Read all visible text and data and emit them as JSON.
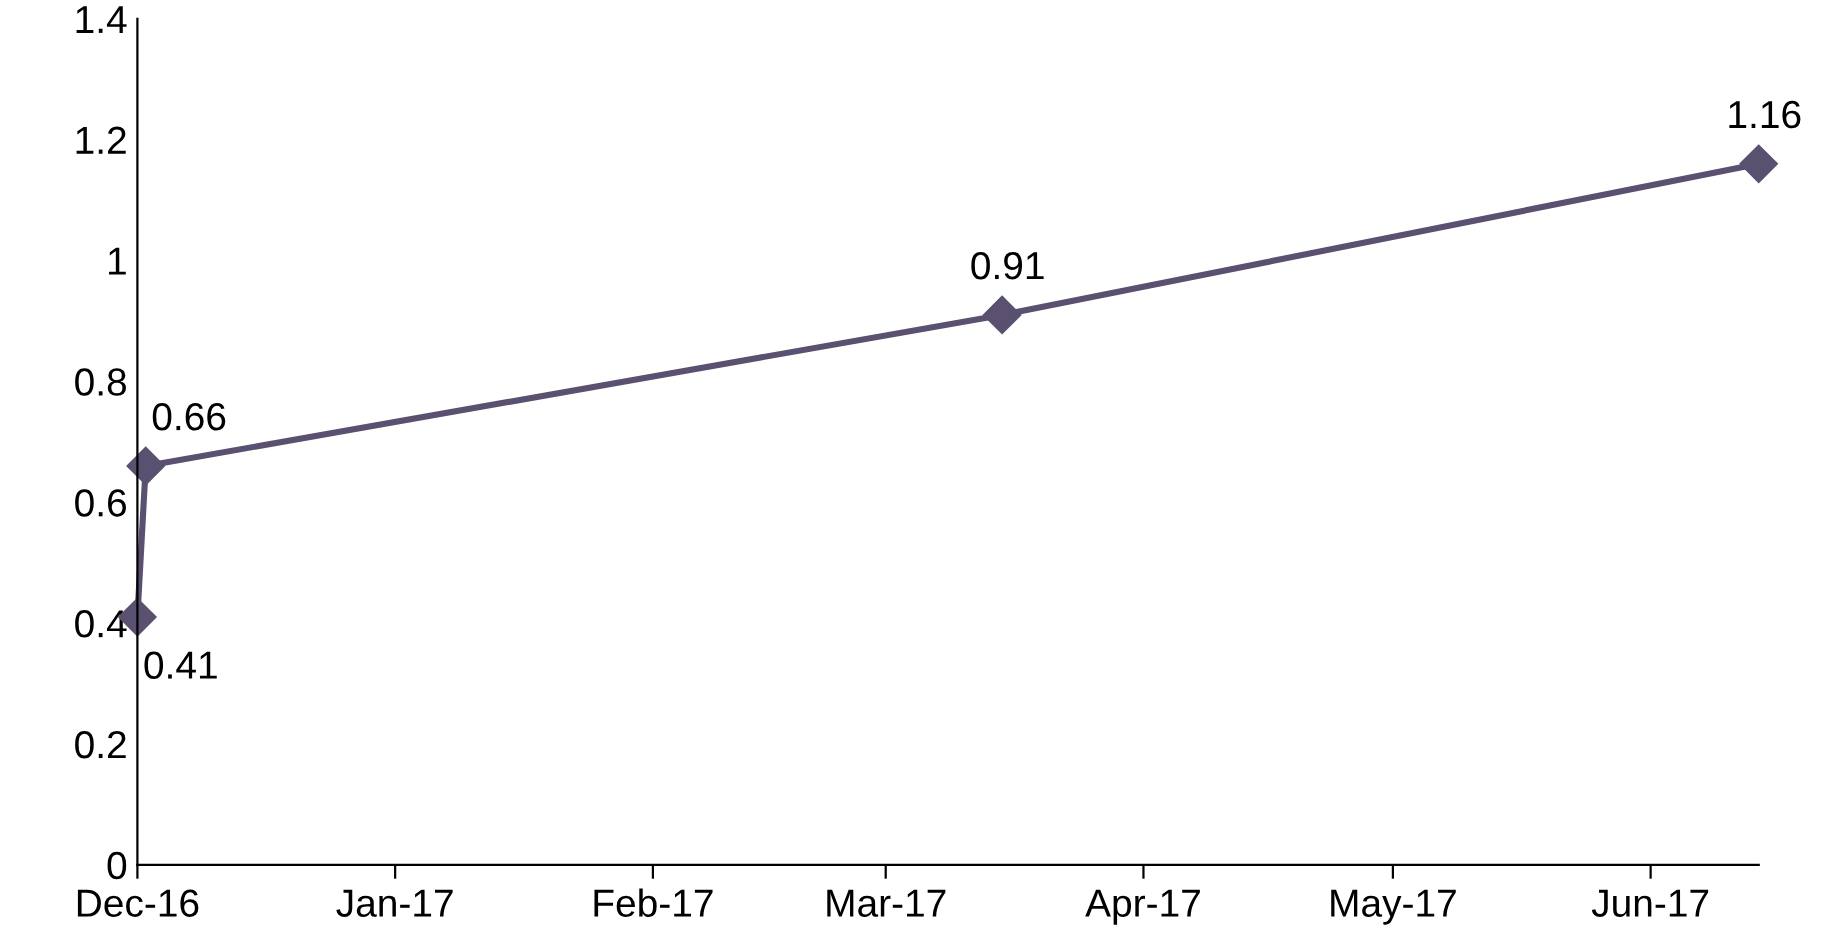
{
  "chart_data": {
    "type": "line",
    "x": [
      "2016-12-01",
      "2016-12-02",
      "2017-03-15",
      "2017-06-14"
    ],
    "series": [
      {
        "color": "#5a5070",
        "values": [
          0.41,
          0.66,
          0.91,
          1.16
        ]
      }
    ],
    "xlim": [
      "2016-12-01",
      "2017-06-14"
    ],
    "xticks": [
      {
        "value": "2016-12-01",
        "label": "Dec-16"
      },
      {
        "value": "2017-01-01",
        "label": "Jan-17"
      },
      {
        "value": "2017-02-01",
        "label": "Feb-17"
      },
      {
        "value": "2017-03-01",
        "label": "Mar-17"
      },
      {
        "value": "2017-04-01",
        "label": "Apr-17"
      },
      {
        "value": "2017-05-01",
        "label": "May-17"
      },
      {
        "value": "2017-06-01",
        "label": "Jun-17"
      }
    ],
    "ylim": [
      0,
      1.4
    ],
    "yticks": [
      0,
      0.2,
      0.4,
      0.6,
      0.8,
      1,
      1.2,
      1.4
    ],
    "marker": "diamond",
    "line_style": "solid",
    "data_labels": true,
    "grid": false,
    "legend": false
  }
}
